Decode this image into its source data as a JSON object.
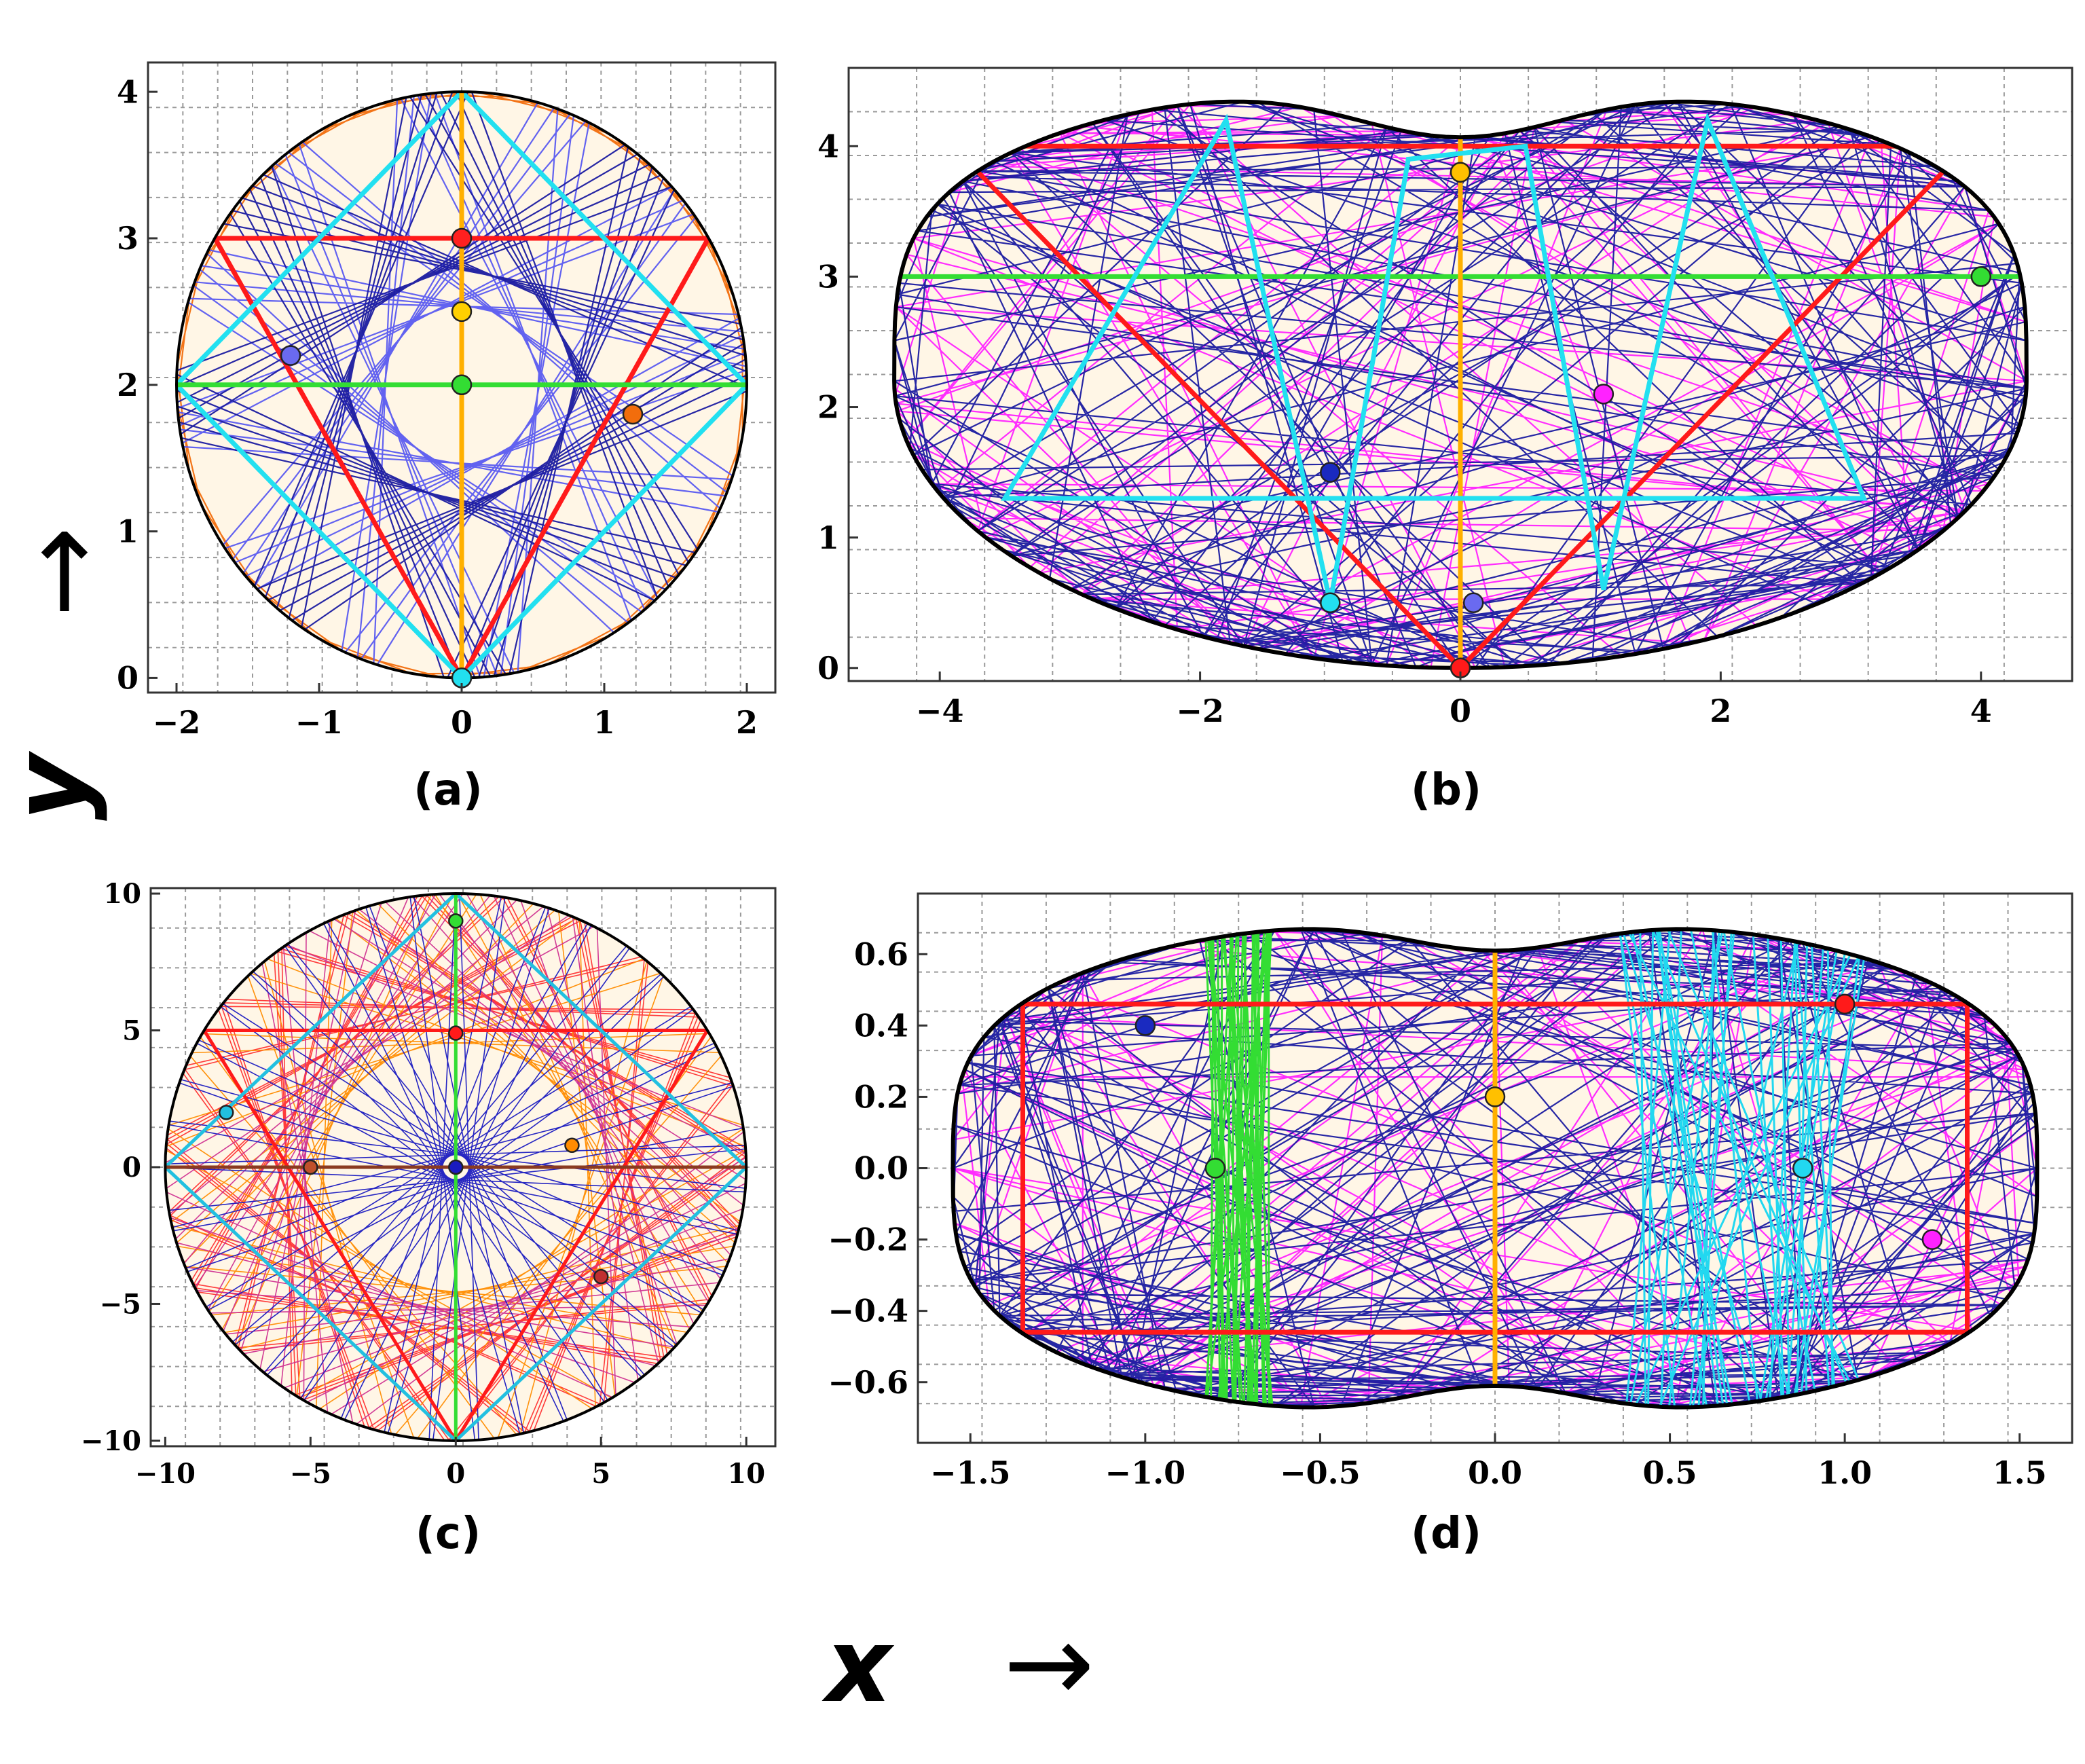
{
  "figure": {
    "x_axis_label": "x",
    "y_axis_label": "y",
    "x_arrow": "→",
    "y_arrow": "↑"
  },
  "chart_data": [
    {
      "panel": "(a)",
      "type": "scatter",
      "title": "",
      "xlabel": "",
      "ylabel": "",
      "xlim": [
        -2.2,
        2.2
      ],
      "ylim": [
        -0.1,
        4.2
      ],
      "xticks": [
        -2,
        -1,
        0,
        1,
        2
      ],
      "xtick_labels": [
        "−2",
        "−1",
        "0",
        "1",
        "2"
      ],
      "yticks": [
        0,
        1,
        2,
        3,
        4
      ],
      "ytick_labels": [
        "0",
        "1",
        "2",
        "3",
        "4"
      ],
      "grid": true,
      "boundary": "circle",
      "boundary_params": {
        "cx": 0,
        "cy": 2,
        "r": 2
      },
      "orbits": [
        {
          "color": "#f26d0c",
          "kind": "caustic",
          "cx": 0,
          "cy": 2,
          "r": 2,
          "n": 40,
          "step": 0.35
        },
        {
          "color": "#5a5af0",
          "kind": "caustic",
          "cx": 0,
          "cy": 2,
          "r": 2,
          "n": 40,
          "step": 2.6
        },
        {
          "color": "#1a1aa0",
          "kind": "caustic",
          "cx": 0,
          "cy": 2,
          "r": 2,
          "n": 40,
          "step": 2.35
        }
      ],
      "periodic": [
        {
          "color": "#ff1a1a",
          "points": [
            [
              -1.73,
              3
            ],
            [
              1.73,
              3
            ],
            [
              0,
              0
            ]
          ]
        },
        {
          "color": "#22e0f0",
          "points": [
            [
              0,
              0
            ],
            [
              2,
              2
            ],
            [
              0,
              4
            ],
            [
              -2,
              2
            ]
          ]
        },
        {
          "color": "#33dd33",
          "points": [
            [
              -2,
              2
            ],
            [
              2,
              2
            ]
          ]
        },
        {
          "color": "#ffb000",
          "points": [
            [
              0,
              0
            ],
            [
              0,
              4
            ]
          ]
        }
      ],
      "markers": [
        {
          "x": 0,
          "y": 3,
          "color": "#ff2020"
        },
        {
          "x": 0,
          "y": 2.5,
          "color": "#ffd000"
        },
        {
          "x": 0,
          "y": 2,
          "color": "#33dd33"
        },
        {
          "x": -1.2,
          "y": 2.2,
          "color": "#6a6af0"
        },
        {
          "x": 1.2,
          "y": 1.8,
          "color": "#f26d0c"
        },
        {
          "x": 0,
          "y": 0,
          "color": "#22e0f0"
        }
      ]
    },
    {
      "panel": "(b)",
      "type": "scatter",
      "title": "",
      "xlabel": "",
      "ylabel": "",
      "xlim": [
        -4.7,
        4.7
      ],
      "ylim": [
        -0.1,
        4.6
      ],
      "xticks": [
        -4,
        -2,
        0,
        2,
        4
      ],
      "xtick_labels": [
        "−4",
        "−2",
        "0",
        "2",
        "4"
      ],
      "yticks": [
        0,
        1,
        2,
        3,
        4
      ],
      "ytick_labels": [
        "0",
        "1",
        "2",
        "3",
        "4"
      ],
      "grid": true,
      "boundary": "kidney",
      "orbits": [
        {
          "color": "#ff22ff",
          "kind": "chaotic",
          "n": 120
        },
        {
          "color": "#1a1aa0",
          "kind": "chaotic",
          "n": 220
        }
      ],
      "periodic": [
        {
          "color": "#ff1a1a",
          "points": [
            [
              -3.9,
              4
            ],
            [
              0,
              0
            ],
            [
              3.9,
              4
            ]
          ]
        },
        {
          "color": "#33dd33",
          "points": [
            [
              -4.4,
              3
            ],
            [
              4.4,
              3
            ]
          ]
        },
        {
          "color": "#ffb000",
          "points": [
            [
              0,
              0
            ],
            [
              0,
              4.1
            ]
          ]
        },
        {
          "color": "#22e0f0",
          "points": [
            [
              -3.5,
              1.3
            ],
            [
              -1.8,
              4.2
            ],
            [
              -1,
              0.5
            ],
            [
              -0.4,
              3.9
            ],
            [
              0.5,
              4.0
            ],
            [
              1.1,
              0.6
            ],
            [
              1.9,
              4.2
            ],
            [
              3.1,
              1.3
            ]
          ]
        }
      ],
      "markers": [
        {
          "x": 0,
          "y": 3.8,
          "color": "#ffc000"
        },
        {
          "x": 4,
          "y": 3,
          "color": "#33dd33"
        },
        {
          "x": 1.1,
          "y": 2.1,
          "color": "#ff22ff"
        },
        {
          "x": -1,
          "y": 1.5,
          "color": "#1a2ac0"
        },
        {
          "x": -1,
          "y": 0.5,
          "color": "#22e0f0"
        },
        {
          "x": 0.1,
          "y": 0.5,
          "color": "#6a6af0"
        },
        {
          "x": 0,
          "y": 0,
          "color": "#ff1a1a"
        }
      ]
    },
    {
      "panel": "(c)",
      "type": "scatter",
      "title": "",
      "xlabel": "",
      "ylabel": "",
      "xlim": [
        -10.5,
        11
      ],
      "ylim": [
        -10.2,
        10.2
      ],
      "xticks": [
        -10,
        -5,
        0,
        5,
        10
      ],
      "xtick_labels": [
        "−10",
        "−5",
        "0",
        "5",
        "10"
      ],
      "yticks": [
        -10,
        -5,
        0,
        5,
        10
      ],
      "ytick_labels": [
        "−10",
        "−5",
        "0",
        "5",
        "10"
      ],
      "grid": true,
      "boundary": "circle",
      "boundary_params": {
        "cx": 0,
        "cy": 0,
        "r": 10
      },
      "orbits": [
        {
          "color": "#ff3030",
          "kind": "caustic",
          "cx": 0,
          "cy": 0,
          "r": 10,
          "n": 60,
          "step": 1.9
        },
        {
          "color": "#ff8c00",
          "kind": "caustic",
          "cx": 0,
          "cy": 0,
          "r": 10,
          "n": 40,
          "step": 2.2
        },
        {
          "color": "#d03090",
          "kind": "caustic",
          "cx": 0,
          "cy": 0,
          "r": 10,
          "n": 40,
          "step": 2.05
        },
        {
          "color": "#1a1ac0",
          "kind": "caustic",
          "cx": 0,
          "cy": 0,
          "r": 10,
          "n": 40,
          "step": 3.05
        }
      ],
      "periodic": [
        {
          "color": "#ff1a1a",
          "points": [
            [
              -8.66,
              5
            ],
            [
              8.66,
              5
            ],
            [
              0,
              -10
            ]
          ]
        },
        {
          "color": "#22c0e0",
          "points": [
            [
              0,
              -10
            ],
            [
              10,
              0
            ],
            [
              0,
              10
            ],
            [
              -10,
              0
            ]
          ]
        },
        {
          "color": "#33dd33",
          "points": [
            [
              0,
              -10
            ],
            [
              0,
              10
            ]
          ]
        },
        {
          "color": "#8a3a20",
          "points": [
            [
              -10,
              0
            ],
            [
              10,
              0
            ]
          ]
        }
      ],
      "markers": [
        {
          "x": 0,
          "y": 9,
          "color": "#33dd33"
        },
        {
          "x": 0,
          "y": 4.9,
          "color": "#ff1a1a"
        },
        {
          "x": -7.9,
          "y": 2,
          "color": "#22c0e0"
        },
        {
          "x": -5,
          "y": 0,
          "color": "#c0502a"
        },
        {
          "x": 4,
          "y": 0.8,
          "color": "#ff8c00"
        },
        {
          "x": 0,
          "y": 0,
          "color": "#1a1ac0"
        },
        {
          "x": 5,
          "y": -4,
          "color": "#c03030"
        }
      ]
    },
    {
      "panel": "(d)",
      "type": "scatter",
      "title": "",
      "xlabel": "",
      "ylabel": "",
      "xlim": [
        -1.65,
        1.65
      ],
      "ylim": [
        -0.77,
        0.77
      ],
      "xticks": [
        -1.5,
        -1.0,
        -0.5,
        0.0,
        0.5,
        1.0,
        1.5
      ],
      "xtick_labels": [
        "−1.5",
        "−1.0",
        "−0.5",
        "0.0",
        "0.5",
        "1.0",
        "1.5"
      ],
      "yticks": [
        -0.6,
        -0.4,
        -0.2,
        0.0,
        0.2,
        0.4,
        0.6
      ],
      "ytick_labels": [
        "−0.6",
        "−0.4",
        "−0.2",
        "0.0",
        "0.2",
        "0.4",
        "0.6"
      ],
      "grid": true,
      "boundary": "peanut",
      "orbits": [
        {
          "color": "#ff22ff",
          "kind": "chaotic",
          "n": 120
        },
        {
          "color": "#1a1aa0",
          "kind": "chaotic",
          "n": 230
        }
      ],
      "periodic": [
        {
          "color": "#ff1a1a",
          "points": [
            [
              -1.35,
              0.46
            ],
            [
              1.35,
              0.46
            ],
            [
              1.35,
              -0.46
            ],
            [
              -1.35,
              -0.46
            ]
          ]
        },
        {
          "color": "#ffb000",
          "points": [
            [
              0,
              -0.64
            ],
            [
              0,
              0.64
            ]
          ]
        }
      ],
      "bands": [
        {
          "color": "#33dd33",
          "x0": -0.83,
          "x1": -0.63,
          "y0": -0.68,
          "y1": 0.68
        },
        {
          "color": "#22d8f0",
          "x0": 0.35,
          "x1": 1.1,
          "y0": -0.68,
          "y1": 0.68
        }
      ],
      "markers": [
        {
          "x": -1,
          "y": 0.4,
          "color": "#1a2ac0"
        },
        {
          "x": -0.8,
          "y": 0,
          "color": "#33dd33"
        },
        {
          "x": 0,
          "y": 0.2,
          "color": "#ffc000"
        },
        {
          "x": 1,
          "y": 0.46,
          "color": "#ff1a1a"
        },
        {
          "x": 0.88,
          "y": 0,
          "color": "#22d8f0"
        },
        {
          "x": 1.25,
          "y": -0.2,
          "color": "#ff22ff"
        }
      ]
    }
  ]
}
